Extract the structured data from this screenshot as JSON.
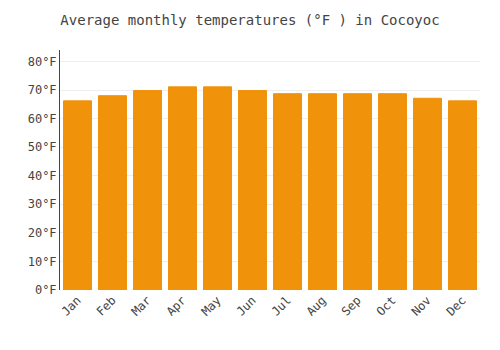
{
  "chart_data": {
    "type": "bar",
    "title": "Average monthly temperatures (°F ) in Cocoyoc",
    "categories": [
      "Jan",
      "Feb",
      "Mar",
      "Apr",
      "May",
      "Jun",
      "Jul",
      "Aug",
      "Sep",
      "Oct",
      "Nov",
      "Dec"
    ],
    "values": [
      66.2,
      68.0,
      69.8,
      71.1,
      71.1,
      69.8,
      68.7,
      68.7,
      68.7,
      68.7,
      67.1,
      66.2
    ],
    "color": "#F0920A",
    "ylim": [
      0,
      84
    ],
    "yticks": [
      {
        "value": 0,
        "label": "0°F"
      },
      {
        "value": 10,
        "label": "10°F"
      },
      {
        "value": 20,
        "label": "20°F"
      },
      {
        "value": 30,
        "label": "30°F"
      },
      {
        "value": 40,
        "label": "40°F"
      },
      {
        "value": 50,
        "label": "50°F"
      },
      {
        "value": 60,
        "label": "60°F"
      },
      {
        "value": 70,
        "label": "70°F"
      },
      {
        "value": 80,
        "label": "80°F"
      }
    ],
    "grid": true
  }
}
